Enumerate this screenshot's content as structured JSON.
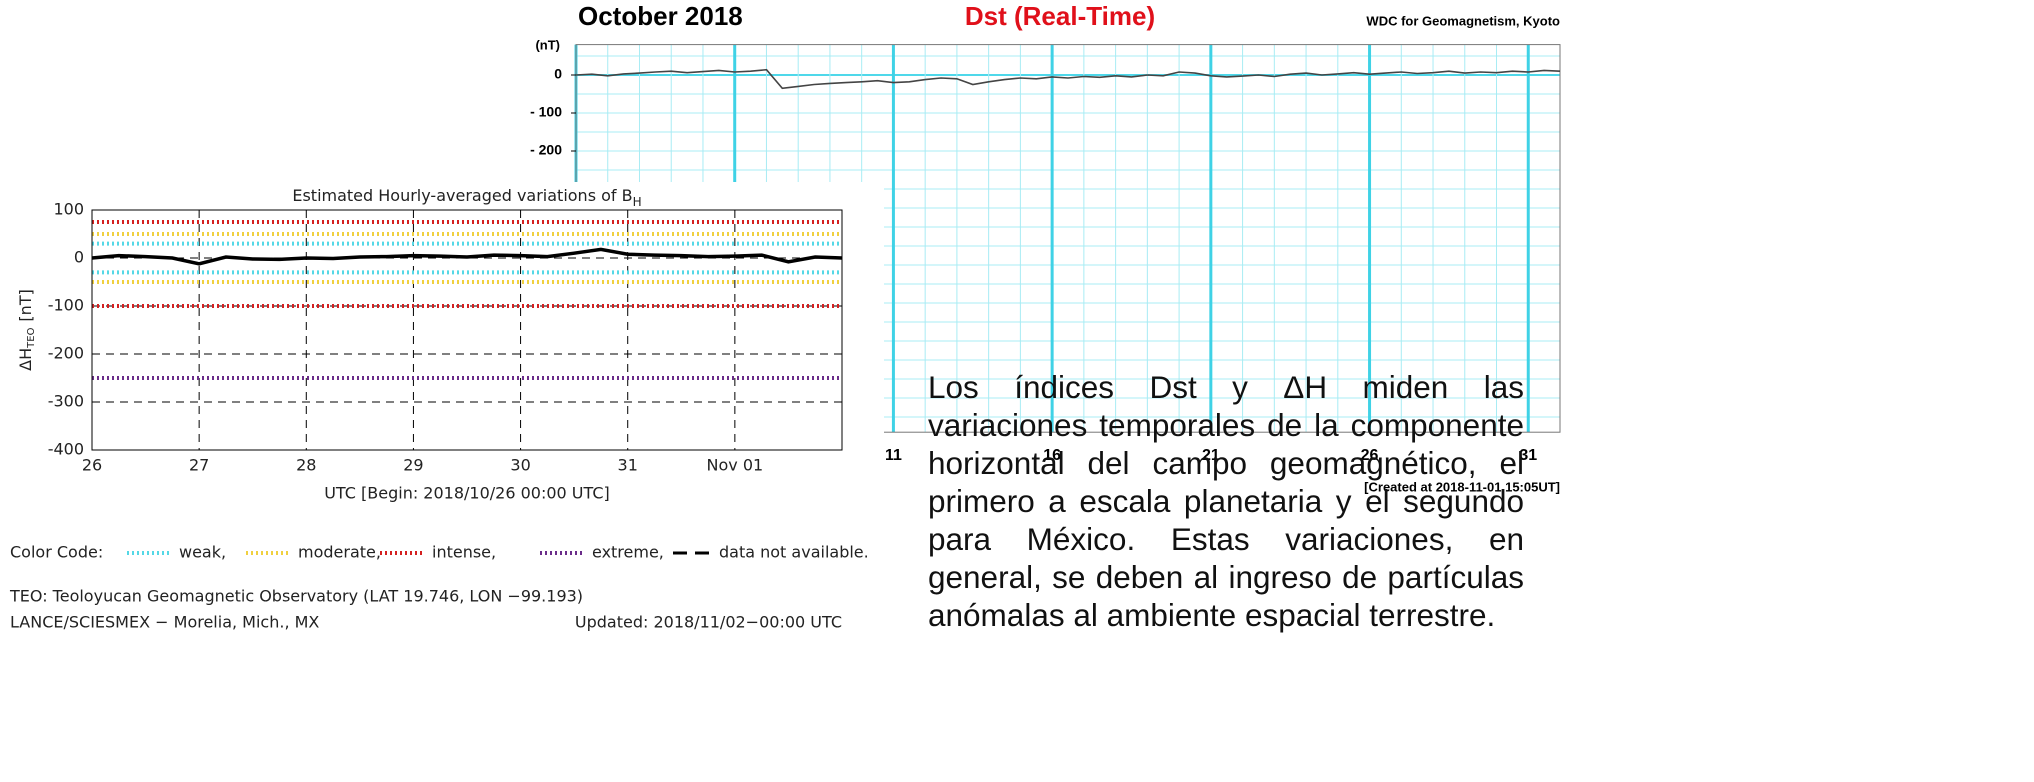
{
  "chart_data": [
    {
      "type": "line",
      "title": "October 2018",
      "subtitle": "Dst (Real-Time)",
      "source": "WDC for Geomagnetism, Kyoto",
      "ylabel": "(nT)",
      "note": "[Created at 2018-11-01 15:05UT]",
      "xlim": [
        1,
        32
      ],
      "xticks": [
        11,
        16,
        21,
        26,
        31
      ],
      "minor_xticks": [
        1,
        2,
        3,
        4,
        5,
        6,
        7,
        8,
        9,
        10,
        11,
        12,
        13,
        14,
        15,
        16,
        17,
        18,
        19,
        20,
        21,
        22,
        23,
        24,
        25,
        26,
        27,
        28,
        29,
        30,
        31,
        32
      ],
      "ylim": [
        -940,
        80
      ],
      "yticks": [
        0,
        {
          "value": -100,
          "label": "- 100"
        },
        {
          "value": -200,
          "label": "- 200"
        }
      ],
      "minor_yticks": [
        50,
        0,
        -50,
        -100,
        -150,
        -200,
        -250,
        -300,
        -350,
        -400,
        -450,
        -500,
        -550,
        -600,
        -650,
        -700,
        -750,
        -800,
        -850,
        -900
      ],
      "grid": true,
      "series": [
        {
          "name": "Dst",
          "color": "#444444",
          "x": [
            1,
            1.5,
            2,
            2.5,
            3,
            3.5,
            4,
            4.5,
            5,
            5.5,
            6,
            6.5,
            7,
            7.5,
            8,
            8.5,
            9,
            9.5,
            10,
            10.5,
            11,
            11.5,
            12,
            12.5,
            13,
            13.5,
            14,
            14.5,
            15,
            15.5,
            16,
            16.5,
            17,
            17.5,
            18,
            18.5,
            19,
            19.5,
            20,
            20.5,
            21,
            21.5,
            22,
            22.5,
            23,
            23.5,
            24,
            24.5,
            25,
            25.5,
            26,
            26.5,
            27,
            27.5,
            28,
            28.5,
            29,
            29.5,
            30,
            30.5,
            31,
            31.5,
            32
          ],
          "values": [
            0,
            2,
            -2,
            3,
            5,
            8,
            10,
            6,
            9,
            12,
            8,
            10,
            14,
            -35,
            -30,
            -25,
            -22,
            -20,
            -18,
            -15,
            -20,
            -18,
            -12,
            -8,
            -10,
            -25,
            -18,
            -12,
            -8,
            -10,
            -5,
            -8,
            -4,
            -6,
            -2,
            -5,
            0,
            -2,
            8,
            5,
            -2,
            -5,
            -3,
            0,
            -4,
            2,
            5,
            0,
            3,
            6,
            2,
            5,
            8,
            4,
            6,
            10,
            5,
            8,
            6,
            10,
            8,
            12,
            10
          ]
        }
      ]
    },
    {
      "type": "line",
      "title": "Estimated Hourly-averaged variations of B",
      "title_sub": "H",
      "ylabel": "ΔH",
      "ylabel_sub": "TEO",
      "ylabel_unit": "[nT]",
      "xlabel": "UTC [Begin: 2018/10/26 00:00 UTC]",
      "xlim": [
        0,
        7
      ],
      "xticks": [
        {
          "value": 0,
          "label": "26"
        },
        {
          "value": 1,
          "label": "27"
        },
        {
          "value": 2,
          "label": "28"
        },
        {
          "value": 3,
          "label": "29"
        },
        {
          "value": 4,
          "label": "30"
        },
        {
          "value": 5,
          "label": "31"
        },
        {
          "value": 6,
          "label": "Nov 01"
        }
      ],
      "ylim": [
        -400,
        100
      ],
      "yticks": [
        100,
        0,
        -100,
        -200,
        -300,
        -400
      ],
      "grid": true,
      "legend_title": "Color Code:",
      "thresholds": [
        {
          "name": "weak,",
          "color": "#55d8e6",
          "values": [
            30,
            -30
          ]
        },
        {
          "name": "moderate,",
          "color": "#f0d040",
          "values": [
            50,
            -50
          ]
        },
        {
          "name": "intense,",
          "color": "#d42020",
          "values": [
            75,
            -100
          ]
        },
        {
          "name": "extreme,",
          "color": "#6a2c8a",
          "values": [
            -250
          ]
        },
        {
          "name": "data not available.",
          "color": "#000000",
          "values": []
        }
      ],
      "series": [
        {
          "name": "ΔH",
          "color": "#000000",
          "x": [
            0,
            0.25,
            0.5,
            0.75,
            1,
            1.25,
            1.5,
            1.75,
            2,
            2.25,
            2.5,
            2.75,
            3,
            3.25,
            3.5,
            3.75,
            4,
            4.25,
            4.5,
            4.75,
            5,
            5.25,
            5.5,
            5.75,
            6,
            6.25,
            6.5,
            6.75,
            7
          ],
          "values": [
            0,
            5,
            3,
            0,
            -12,
            2,
            -2,
            -3,
            0,
            -1,
            2,
            3,
            5,
            4,
            2,
            6,
            5,
            3,
            10,
            18,
            8,
            6,
            5,
            3,
            4,
            6,
            -8,
            2,
            0
          ]
        }
      ],
      "footer": [
        "TEO: Teoloyucan Geomagnetic Observatory (LAT  19.746, LON −99.193)",
        "LANCE/SCIESMEX − Morelia, Mich., MX"
      ],
      "updated": "Updated: 2018/11/02−00:00 UTC"
    }
  ],
  "paragraph": "Los índices Dst y ΔH miden las variaciones temporales de la componente horizontal del campo geomagnético, el primero a escala planetaria y el segundo para México. Estas variaciones, en general, se deben al ingreso de partículas anómalas al ambiente espacial terrestre."
}
